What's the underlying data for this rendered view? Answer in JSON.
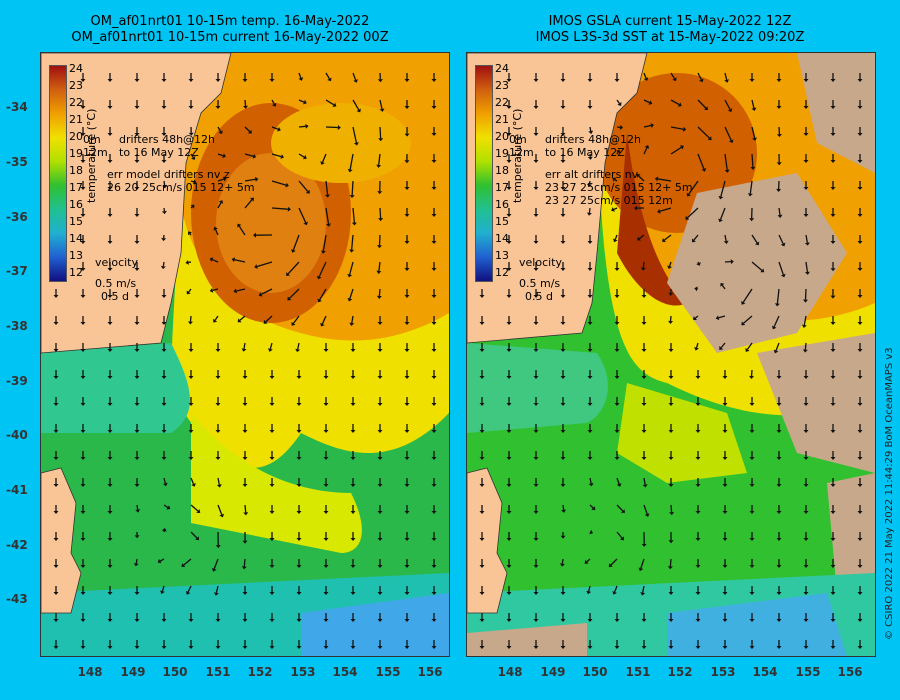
{
  "left": {
    "title1": "OM_af01nrt01 10-15m temp. 16-May-2022",
    "title2": "OM_af01nrt01 10-15m current 16-May-2022 00Z",
    "legend": {
      "drifters_line1": "drifters 48h@12h",
      "drifters_line2": "to 16 May 12Z",
      "depth0": "0m",
      "depth12": "12m",
      "err_line1": "err model drifters nv z",
      "err_line2": "26 20 25cm/s 015 12+ 5m",
      "velocity": "velocity",
      "vel_scale": "0.5 m/s",
      "vel_time": "0.5 d"
    }
  },
  "right": {
    "title1": "IMOS GSLA current 15-May-2022 12Z",
    "title2": "IMOS L3S-3d SST at 15-May-2022 09:20Z",
    "legend": {
      "drifters_line1": "drifters 48h@12h",
      "drifters_line2": "to 16 May 12Z",
      "depth0": "0m",
      "depth12": "12m",
      "err_line1": "err alt drifters nv",
      "err_line2": "23 27 25cm/s 015 12+ 5m",
      "err_line3": "23 27 25cm/s 015 12m",
      "velocity": "velocity",
      "vel_scale": "0.5 m/s",
      "vel_time": "0.5 d"
    }
  },
  "colorbar": {
    "title": "temperature (°C)",
    "ticks": [
      "24",
      "23",
      "22",
      "21",
      "20",
      "19",
      "18",
      "17",
      "16",
      "15",
      "14",
      "13",
      "12"
    ]
  },
  "lat_labels": [
    "-34",
    "-35",
    "-36",
    "-37",
    "-38",
    "-39",
    "-40",
    "-41",
    "-42",
    "-43"
  ],
  "lon_labels": [
    "148",
    "149",
    "150",
    "151",
    "152",
    "153",
    "154",
    "155",
    "156"
  ],
  "credit": "© CSIRO 2022  21 May 2022 11:44:29 BoM OceanMAPS v3",
  "colors": {
    "background": "#00c4f4",
    "land": "#f9c596",
    "nodata": "#c8a88a"
  }
}
